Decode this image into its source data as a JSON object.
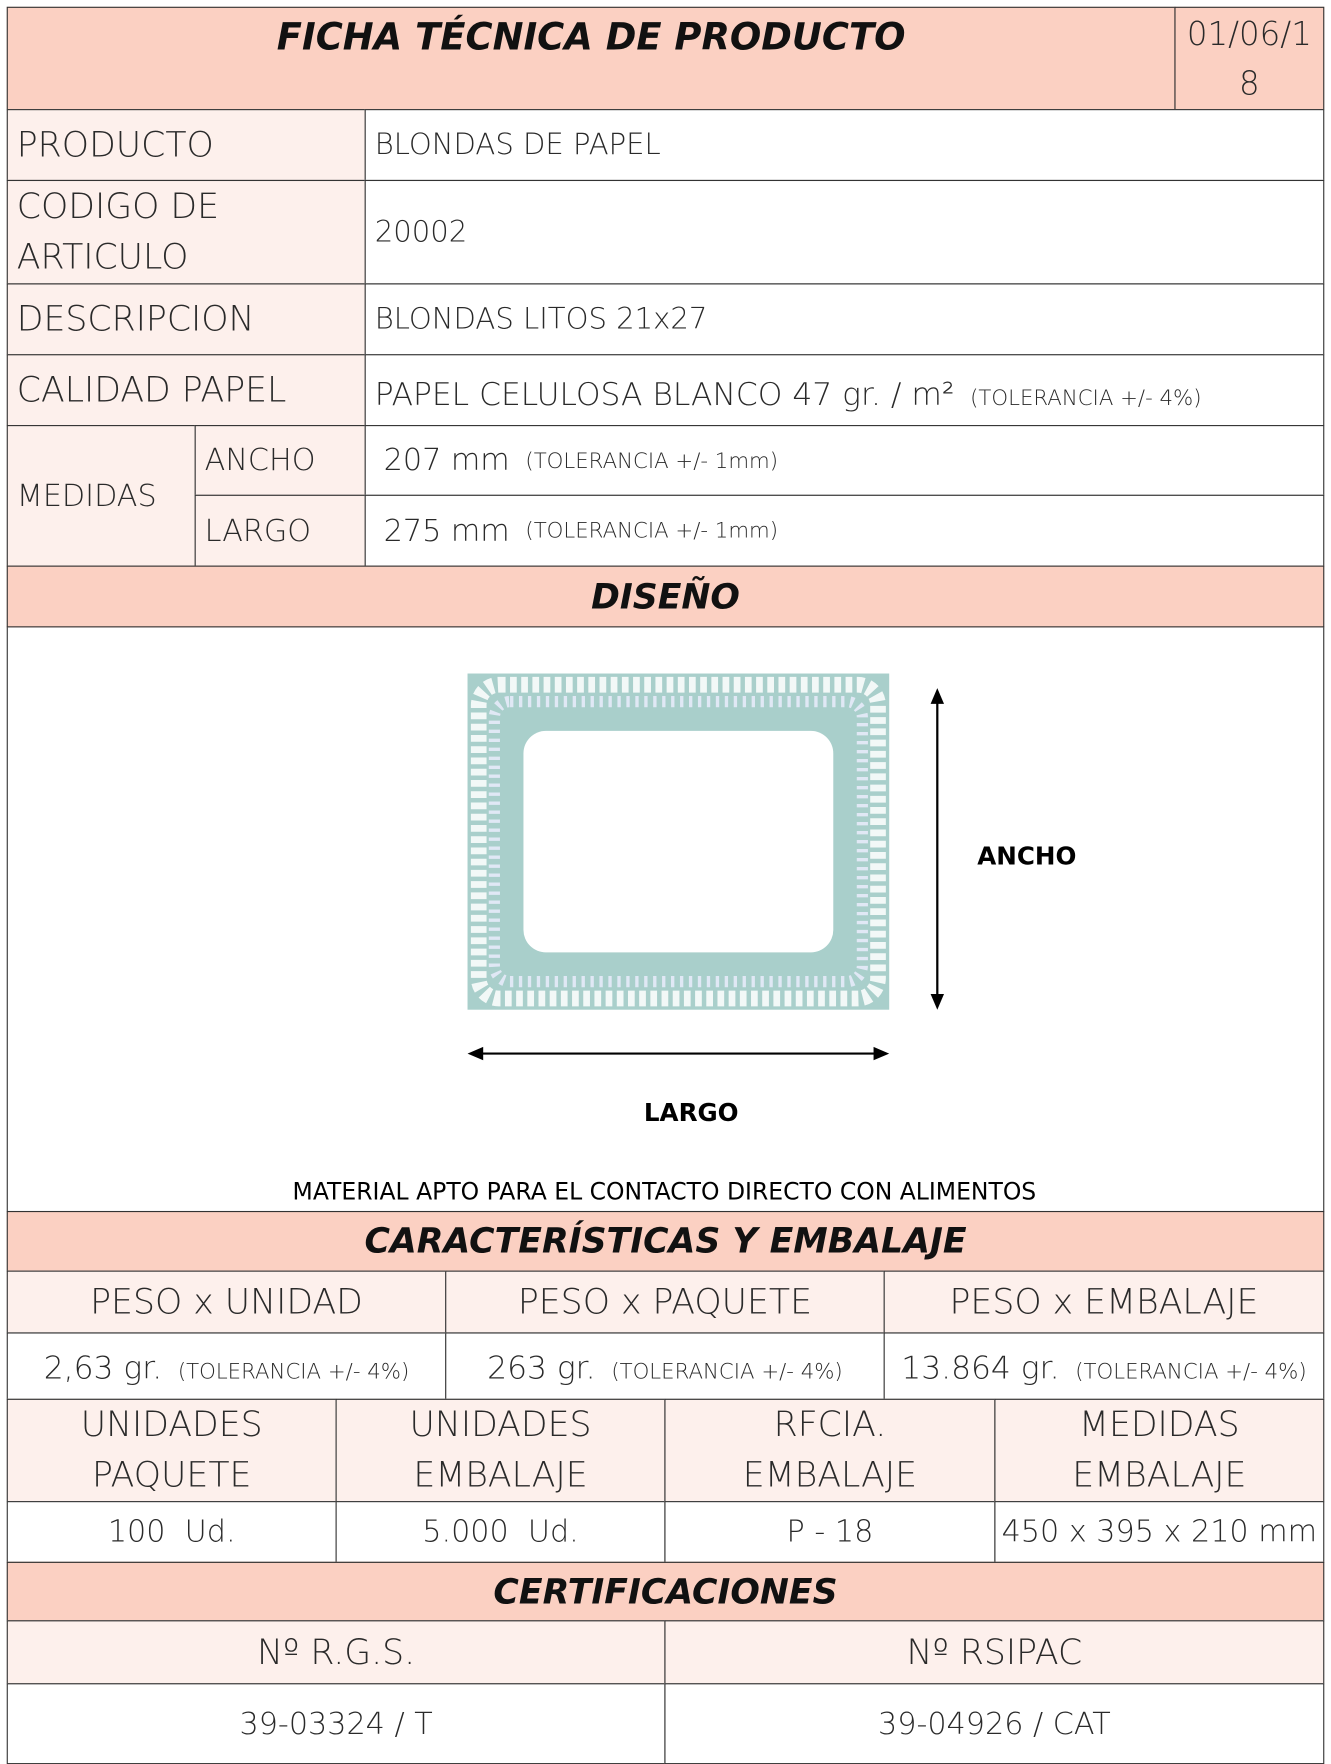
{
  "header": {
    "title": "FICHA TÉCNICA DE PRODUCTO",
    "date": "01/06/18"
  },
  "product": {
    "rows": [
      {
        "label": "PRODUCTO",
        "value": "BLONDAS DE PAPEL"
      },
      {
        "label": "CODIGO DE ARTICULO",
        "value": "20002"
      },
      {
        "label": "DESCRIPCION",
        "value": "BLONDAS LITOS 21x27"
      },
      {
        "label": "CALIDAD PAPEL",
        "value": "PAPEL CELULOSA BLANCO 47 gr. / m²",
        "note": "(TOLERANCIA +/- 4%)"
      }
    ],
    "medidas": {
      "label": "MEDIDAS",
      "rows": [
        {
          "label": "ANCHO",
          "value": "207 mm",
          "note": "(TOLERANCIA +/- 1mm)"
        },
        {
          "label": "LARGO",
          "value": "275 mm",
          "note": "(TOLERANCIA +/- 1mm)"
        }
      ]
    }
  },
  "design": {
    "title": "DISEÑO",
    "ancho_label": "ANCHO",
    "largo_label": "LARGO",
    "note": "MATERIAL APTO PARA EL CONTACTO DIRECTO CON ALIMENTOS"
  },
  "characteristics": {
    "title": "CARACTERÍSTICAS Y EMBALAJE",
    "weights": {
      "headers": [
        "PESO x UNIDAD",
        "PESO x PAQUETE",
        "PESO x EMBALAJE"
      ],
      "values": [
        "2,63 gr.",
        "263 gr.",
        "13.864 gr."
      ],
      "notes": [
        "(TOLERANCIA +/- 4%)",
        "(TOLERANCIA +/- 4%)",
        "(TOLERANCIA +/- 4%)"
      ]
    },
    "packaging": {
      "headers": [
        "UNIDADES PAQUETE",
        "UNIDADES EMBALAJE",
        "RFCIA. EMBALAJE",
        "MEDIDAS EMBALAJE"
      ],
      "values": [
        "100  Ud.",
        "5.000  Ud.",
        "P - 18",
        "450 x 395 x 210 mm"
      ]
    }
  },
  "certifications": {
    "title": "CERTIFICACIONES",
    "headers": [
      "Nº R.G.S.",
      "Nº RSIPAC"
    ],
    "values": [
      "39-03324 / T",
      "39-04926 / CAT"
    ]
  }
}
